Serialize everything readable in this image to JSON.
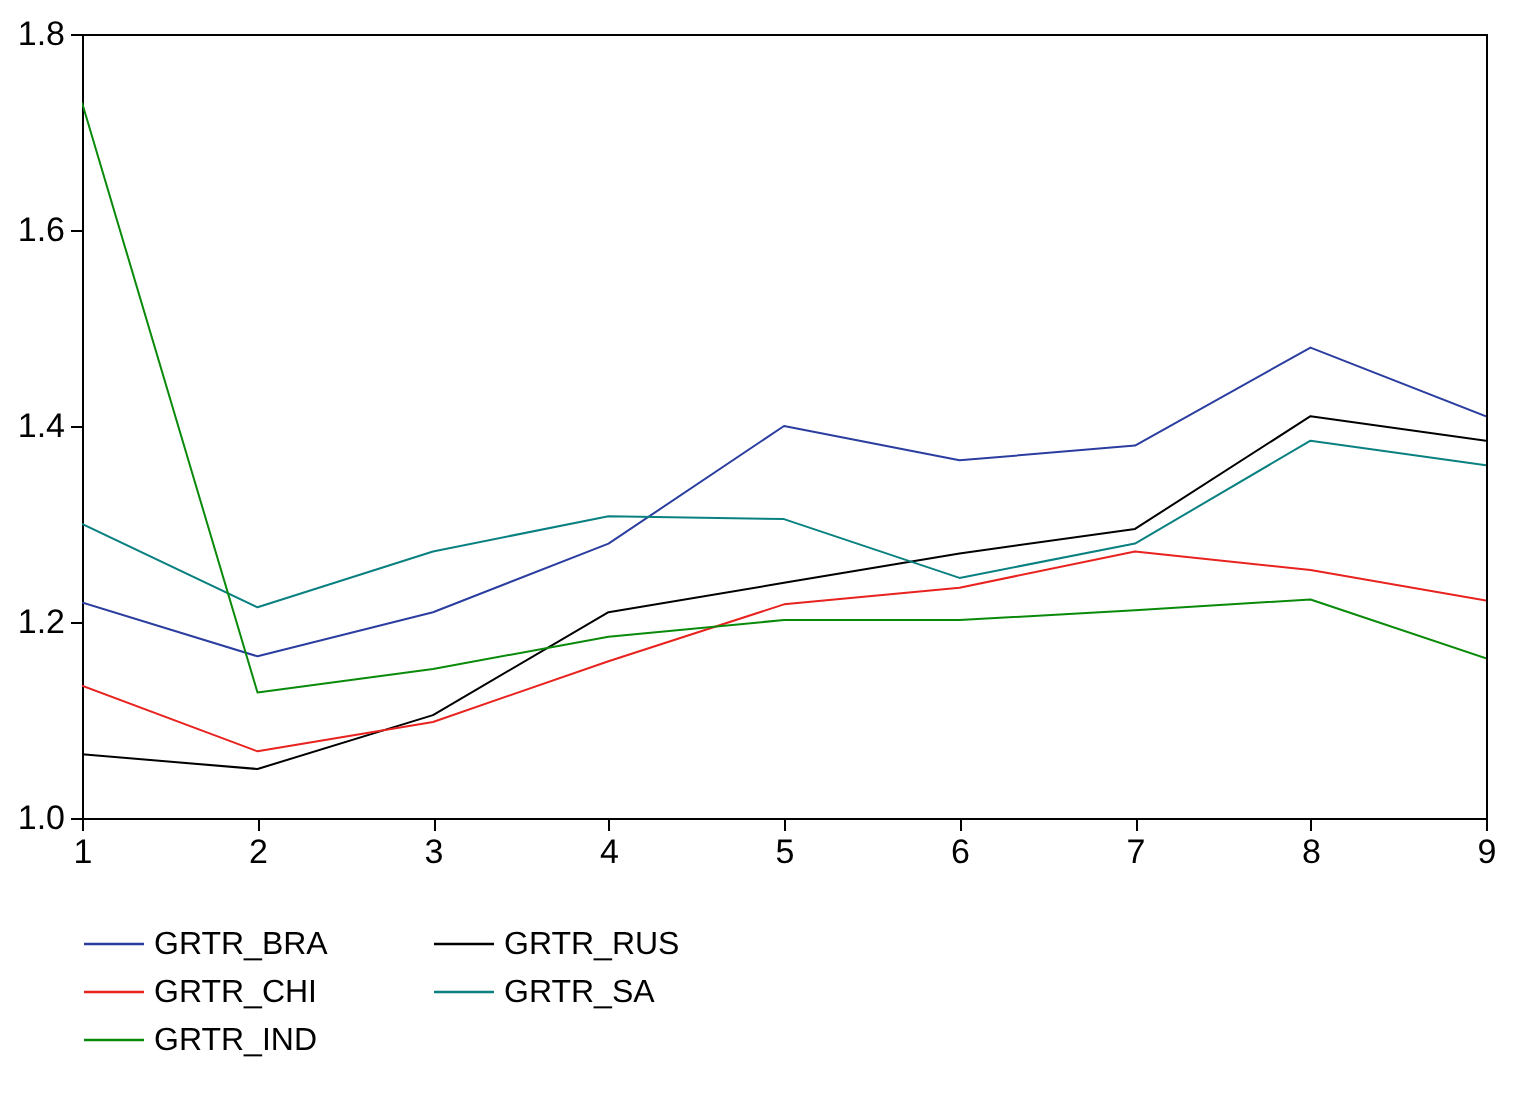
{
  "chart_data": {
    "type": "line",
    "x": [
      1,
      2,
      3,
      4,
      5,
      6,
      7,
      8,
      9
    ],
    "series": [
      {
        "name": "GRTR_BRA",
        "color": "#2b3ea0",
        "values": [
          1.22,
          1.165,
          1.21,
          1.28,
          1.4,
          1.365,
          1.38,
          1.48,
          1.41
        ]
      },
      {
        "name": "GRTR_RUS",
        "color": "#000000",
        "values": [
          1.065,
          1.05,
          1.105,
          1.21,
          1.24,
          1.27,
          1.295,
          1.41,
          1.385
        ]
      },
      {
        "name": "GRTR_CHI",
        "color": "#e8231f",
        "values": [
          1.135,
          1.068,
          1.098,
          1.16,
          1.218,
          1.235,
          1.272,
          1.253,
          1.222
        ]
      },
      {
        "name": "GRTR_SA",
        "color": "#0a8080",
        "values": [
          1.3,
          1.215,
          1.272,
          1.308,
          1.305,
          1.245,
          1.28,
          1.385,
          1.36
        ]
      },
      {
        "name": "GRTR_IND",
        "color": "#0a8a0a",
        "values": [
          1.73,
          1.128,
          1.152,
          1.185,
          1.202,
          1.202,
          1.212,
          1.223,
          1.163
        ]
      }
    ],
    "xlim": [
      1,
      9
    ],
    "xticks": [
      1,
      2,
      3,
      4,
      5,
      6,
      7,
      8,
      9
    ],
    "ylim": [
      1.0,
      1.8
    ],
    "yticks": [
      {
        "value": 1,
        "label": "1.0"
      },
      1.2,
      1.4,
      1.6,
      1.8
    ],
    "grid": false,
    "legend": "bottom",
    "marker": "none",
    "line_style": "solid"
  }
}
